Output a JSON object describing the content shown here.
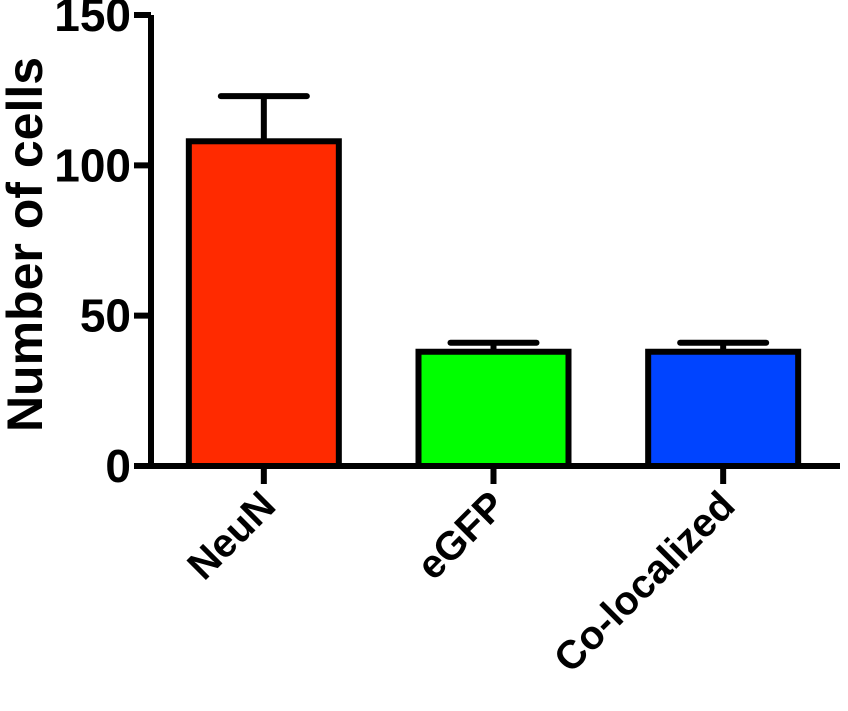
{
  "chart_data": {
    "type": "bar",
    "title": "",
    "xlabel": "",
    "ylabel": "Number of cells",
    "ylim": [
      0,
      150
    ],
    "yticks": [
      0,
      50,
      100,
      150
    ],
    "grid": false,
    "categories": [
      "NeuN",
      "eGFP",
      "Co-localized"
    ],
    "series": [
      {
        "values": [
          108,
          38,
          38
        ],
        "error": [
          15,
          3,
          3
        ],
        "colors": [
          "#ff2a00",
          "#00ff00",
          "#0044ff"
        ]
      }
    ]
  }
}
